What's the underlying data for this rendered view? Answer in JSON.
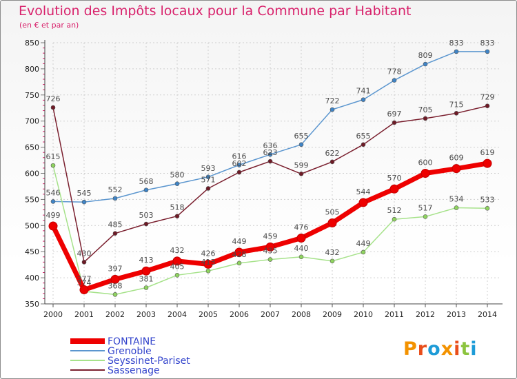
{
  "chart_data": {
    "type": "line",
    "title": "Evolution des Impôts locaux pour la Commune par Habitant",
    "subtitle": "(en € et par an)",
    "xlabel": "",
    "ylabel": "",
    "ylim": [
      350,
      850
    ],
    "yticks": [
      350,
      400,
      450,
      500,
      550,
      600,
      650,
      700,
      750,
      800,
      850
    ],
    "categories": [
      "2000",
      "2001",
      "2002",
      "2003",
      "2004",
      "2005",
      "2006",
      "2007",
      "2008",
      "2009",
      "2010",
      "2011",
      "2012",
      "2013",
      "2014"
    ],
    "grid": true,
    "legend_position": "bottom-left",
    "series": [
      {
        "name": "Grenoble",
        "color": "#5b96cf",
        "marker": "#3f84c6",
        "width": 1.5,
        "values": [
          546,
          545,
          552,
          568,
          580,
          593,
          616,
          636,
          655,
          722,
          741,
          778,
          809,
          833,
          833
        ]
      },
      {
        "name": "Seyssinet-Pariset",
        "color": "#a6e28a",
        "marker": "#8fd45f",
        "width": 1.5,
        "values": [
          615,
          374,
          368,
          381,
          405,
          413,
          428,
          435,
          440,
          432,
          449,
          512,
          517,
          534,
          533
        ]
      },
      {
        "name": "Sassenage",
        "color": "#7a1f2e",
        "marker": "#6e1a26",
        "width": 1.5,
        "values": [
          726,
          430,
          485,
          503,
          518,
          571,
          602,
          623,
          599,
          622,
          655,
          697,
          705,
          715,
          729
        ]
      },
      {
        "name": "FONTAINE",
        "color": "#ee0000",
        "marker": "#ee0000",
        "width": 7,
        "values": [
          499,
          377,
          397,
          413,
          432,
          426,
          449,
          459,
          476,
          505,
          544,
          570,
          600,
          609,
          619
        ]
      }
    ],
    "legend_order": [
      "FONTAINE",
      "Grenoble",
      "Seyssinet-Pariset",
      "Sassenage"
    ]
  },
  "brand": {
    "letters": [
      "P",
      "r",
      "o",
      "x",
      "i",
      "t",
      "i"
    ],
    "colors": [
      "#f39200",
      "#e94e1b",
      "#1d9bd7",
      "#f39200",
      "#e94e1b",
      "#8cc43f",
      "#1d9bd7"
    ]
  }
}
